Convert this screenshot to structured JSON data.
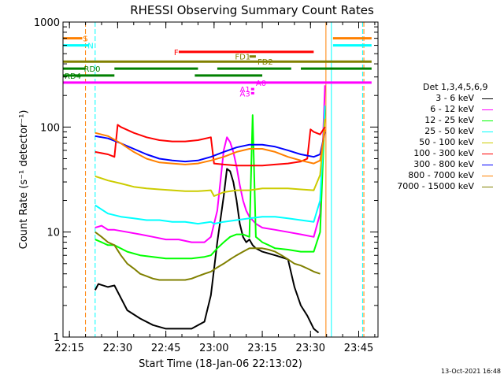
{
  "chart_data": {
    "type": "line",
    "title": "RHESSI Observing Summary Count Rates",
    "xlabel": "Start Time (18-Jan-06 22:13:02)",
    "ylabel": "Count Rate (s⁻¹ detector⁻¹)",
    "ylog": true,
    "ylim": [
      1,
      1000
    ],
    "xlim_minutes": [
      0,
      98
    ],
    "x_ticks": [
      {
        "label": "22:15",
        "min": 2
      },
      {
        "label": "22:30",
        "min": 17
      },
      {
        "label": "22:45",
        "min": 32
      },
      {
        "label": "23:00",
        "min": 47
      },
      {
        "label": "23:15",
        "min": 62
      },
      {
        "label": "23:30",
        "min": 77
      },
      {
        "label": "23:45",
        "min": 92
      }
    ],
    "y_ticks": [
      {
        "label": "1",
        "v": 1
      },
      {
        "label": "10",
        "v": 10
      },
      {
        "label": "100",
        "v": 100
      },
      {
        "label": "1000",
        "v": 1000
      }
    ],
    "legend_title": "Det 1,3,4,5,6,9",
    "series": [
      {
        "name": "3 - 6 keV",
        "color": "#000000",
        "x": [
          10,
          11,
          14,
          16,
          20,
          24,
          28,
          32,
          36,
          40,
          44,
          46,
          48,
          50,
          51,
          52,
          53,
          54,
          55,
          56,
          57,
          58,
          59,
          60,
          62,
          66,
          70,
          72,
          74,
          76,
          78,
          79.5
        ],
        "y": [
          2.8,
          3.2,
          3.0,
          3.1,
          1.8,
          1.5,
          1.3,
          1.2,
          1.2,
          1.2,
          1.4,
          2.5,
          8,
          22,
          40,
          38,
          30,
          20,
          12,
          9,
          8,
          8.5,
          7.5,
          7,
          6.5,
          6,
          5.5,
          3,
          2,
          1.6,
          1.2,
          1.1
        ]
      },
      {
        "name": "6 - 12 keV",
        "color": "#ff00ff",
        "x": [
          10,
          12,
          14,
          16,
          20,
          24,
          28,
          32,
          36,
          40,
          44,
          46,
          48,
          50,
          51,
          52,
          53,
          54,
          55,
          56,
          57,
          58,
          60,
          62,
          66,
          70,
          74,
          78,
          80,
          81.5
        ],
        "y": [
          11,
          11.5,
          10.5,
          10.5,
          10,
          9.5,
          9,
          8.5,
          8.5,
          8,
          8,
          9,
          16,
          60,
          80,
          72,
          58,
          42,
          28,
          20,
          16,
          14,
          12,
          11,
          10.5,
          10,
          9.5,
          9,
          15,
          250
        ]
      },
      {
        "name": "12 - 25 keV",
        "color": "#00ff00",
        "x": [
          10,
          12,
          14,
          16,
          20,
          24,
          28,
          32,
          36,
          40,
          44,
          46,
          48,
          50,
          52,
          54,
          56,
          58,
          59,
          60,
          61,
          62,
          64,
          66,
          70,
          74,
          78,
          80,
          81.5
        ],
        "y": [
          8.5,
          8,
          7.5,
          7.5,
          6.5,
          6,
          5.8,
          5.6,
          5.6,
          5.6,
          5.8,
          6,
          7,
          8,
          9,
          9.5,
          9.5,
          9,
          130,
          9,
          8.5,
          8,
          7.5,
          7,
          6.8,
          6.5,
          6.5,
          10,
          150
        ]
      },
      {
        "name": "25 - 50 keV",
        "color": "#00ffff",
        "x": [
          10,
          14,
          18,
          22,
          26,
          30,
          34,
          38,
          42,
          46,
          47,
          50,
          54,
          58,
          62,
          66,
          70,
          74,
          78,
          80,
          81.5
        ],
        "y": [
          18,
          15,
          14,
          13.5,
          13,
          13,
          12.5,
          12.5,
          12,
          12.5,
          12,
          12.5,
          13,
          13.5,
          14,
          14,
          13.5,
          13,
          12.5,
          20,
          160
        ]
      },
      {
        "name": "50 - 100 keV",
        "color": "#cccc00",
        "x": [
          10,
          14,
          18,
          22,
          26,
          30,
          34,
          38,
          42,
          46,
          47,
          50,
          54,
          58,
          62,
          66,
          70,
          74,
          78,
          80,
          81.5
        ],
        "y": [
          34,
          31,
          29,
          27,
          26,
          25.5,
          25,
          24.5,
          24.5,
          25,
          22,
          24,
          25,
          25,
          26,
          26,
          26,
          25.5,
          25,
          35,
          120
        ]
      },
      {
        "name": "100 - 300 keV",
        "color": "#ff0000",
        "x": [
          10,
          14,
          16,
          17,
          18,
          22,
          26,
          30,
          34,
          38,
          42,
          46,
          47,
          50,
          54,
          58,
          62,
          66,
          70,
          74,
          76,
          77,
          78,
          80,
          81.5
        ],
        "y": [
          58,
          55,
          52,
          105,
          100,
          88,
          80,
          75,
          73,
          73,
          75,
          80,
          45,
          44,
          43,
          43,
          43,
          44,
          45,
          47,
          50,
          95,
          90,
          85,
          100
        ]
      },
      {
        "name": "300 - 800 keV",
        "color": "#0000ff",
        "x": [
          10,
          14,
          18,
          22,
          26,
          30,
          34,
          38,
          42,
          46,
          50,
          54,
          58,
          62,
          66,
          70,
          74,
          78,
          80,
          81.5
        ],
        "y": [
          82,
          78,
          70,
          62,
          55,
          50,
          48,
          47,
          48,
          52,
          58,
          64,
          68,
          68,
          65,
          60,
          55,
          52,
          55,
          90
        ]
      },
      {
        "name": "800 - 7000 keV",
        "color": "#ff8000",
        "x": [
          10,
          14,
          18,
          22,
          26,
          30,
          34,
          38,
          42,
          46,
          50,
          54,
          58,
          62,
          66,
          70,
          74,
          78,
          80,
          81.5
        ],
        "y": [
          88,
          82,
          70,
          58,
          50,
          46,
          45,
          44,
          45,
          48,
          52,
          58,
          62,
          62,
          58,
          52,
          48,
          45,
          48,
          95
        ]
      },
      {
        "name": "7000 - 15000 keV",
        "color": "#808000",
        "x": [
          10,
          12,
          14,
          16,
          18,
          20,
          22,
          24,
          26,
          28,
          30,
          32,
          34,
          36,
          38,
          40,
          42,
          44,
          46,
          48,
          50,
          52,
          54,
          56,
          58,
          60,
          62,
          64,
          66,
          68,
          70,
          72,
          74,
          76,
          78,
          80
        ],
        "y": [
          10,
          9,
          8,
          7.5,
          6,
          5,
          4.5,
          4,
          3.8,
          3.6,
          3.5,
          3.5,
          3.5,
          3.5,
          3.5,
          3.6,
          3.8,
          4,
          4.2,
          4.6,
          5,
          5.5,
          6,
          6.5,
          7,
          7,
          7,
          6.8,
          6.5,
          6,
          5.5,
          5,
          4.8,
          4.5,
          4.2,
          4
        ]
      }
    ],
    "annotations": {
      "flag_levels": [
        {
          "label": "S",
          "color": "#ff8000",
          "y": 700,
          "segments": [
            [
              0,
              6
            ],
            [
              84,
              96
            ]
          ]
        },
        {
          "label": "N",
          "color": "#00ffff",
          "y": 600,
          "segments": [
            [
              0,
              8
            ],
            [
              84,
              96
            ]
          ]
        },
        {
          "label": "F",
          "color": "#ff0000",
          "y": 520,
          "segments": [
            [
              36,
              78
            ]
          ]
        },
        {
          "label": "FD1",
          "color": "#808000",
          "y": 470,
          "segments": [
            [
              58,
              60
            ]
          ]
        },
        {
          "label": "FD2",
          "color": "#808000",
          "y": 420,
          "segments": [
            [
              0,
              96
            ]
          ]
        },
        {
          "label": "RD0",
          "color": "#008000",
          "y": 360,
          "segments": [
            [
              0,
              7
            ],
            [
              16,
              42
            ],
            [
              48,
              71
            ],
            [
              74,
              96
            ]
          ]
        },
        {
          "label": "RD4",
          "color": "#008000",
          "y": 310,
          "segments": [
            [
              0,
              16
            ],
            [
              41,
              62
            ]
          ]
        },
        {
          "label": "A0",
          "color": "#ff00ff",
          "y": 265,
          "segments": [
            [
              0,
              96
            ]
          ]
        },
        {
          "label": "A1",
          "color": "#ff00ff",
          "y": 230,
          "segments": [
            [
              58.5,
              59.5
            ]
          ]
        },
        {
          "label": "A3",
          "color": "#ff00ff",
          "y": 210,
          "segments": [
            [
              58.5,
              59.5
            ]
          ]
        }
      ],
      "vlines": [
        {
          "min": 7,
          "color": "#ff8000",
          "dash": true
        },
        {
          "min": 10,
          "color": "#00ffff",
          "dash": true
        },
        {
          "min": 81.8,
          "color": "#ff8000",
          "dash": false
        },
        {
          "min": 83.5,
          "color": "#00ffff",
          "dash": false
        },
        {
          "min": 93.2,
          "color": "#00ffff",
          "dash": true
        },
        {
          "min": 93.6,
          "color": "#ff8000",
          "dash": true
        }
      ]
    }
  },
  "footer": "13-Oct-2021 16:48"
}
